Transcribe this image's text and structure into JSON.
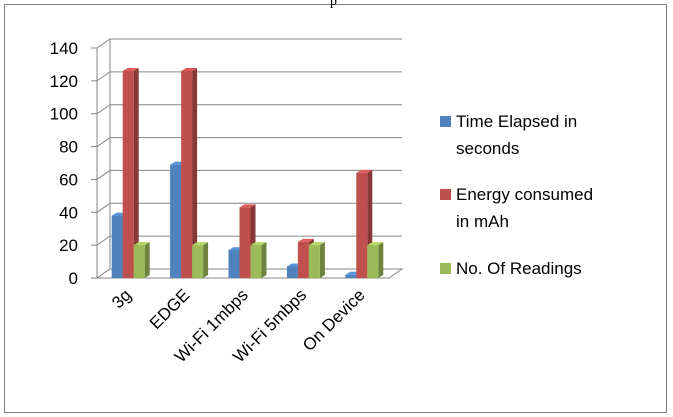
{
  "caption_fragment": "p",
  "chart_data": {
    "type": "bar",
    "categories": [
      "3g",
      "EDGE",
      "Wi-Fi 1mbps",
      "Wi-Fi 5mbps",
      "On Device"
    ],
    "series": [
      {
        "name": "Time Elapsed in seconds",
        "values": [
          38,
          69,
          17,
          7,
          2
        ],
        "color": "#4f81bd"
      },
      {
        "name": "Energy consumed in mAh",
        "values": [
          126,
          126,
          43,
          22,
          64
        ],
        "color": "#c0504d"
      },
      {
        "name": "No. Of Readings",
        "values": [
          20,
          20,
          20,
          20,
          20
        ],
        "color": "#9bbb59"
      }
    ],
    "yticks": [
      0,
      20,
      40,
      60,
      80,
      100,
      120,
      140
    ],
    "ylim": [
      0,
      140
    ],
    "grid": true,
    "legend_position": "right",
    "legend_lines": [
      [
        "Time Elapsed in",
        "seconds"
      ],
      [
        "Energy consumed",
        "in mAh"
      ],
      [
        "No. Of Readings"
      ]
    ]
  }
}
